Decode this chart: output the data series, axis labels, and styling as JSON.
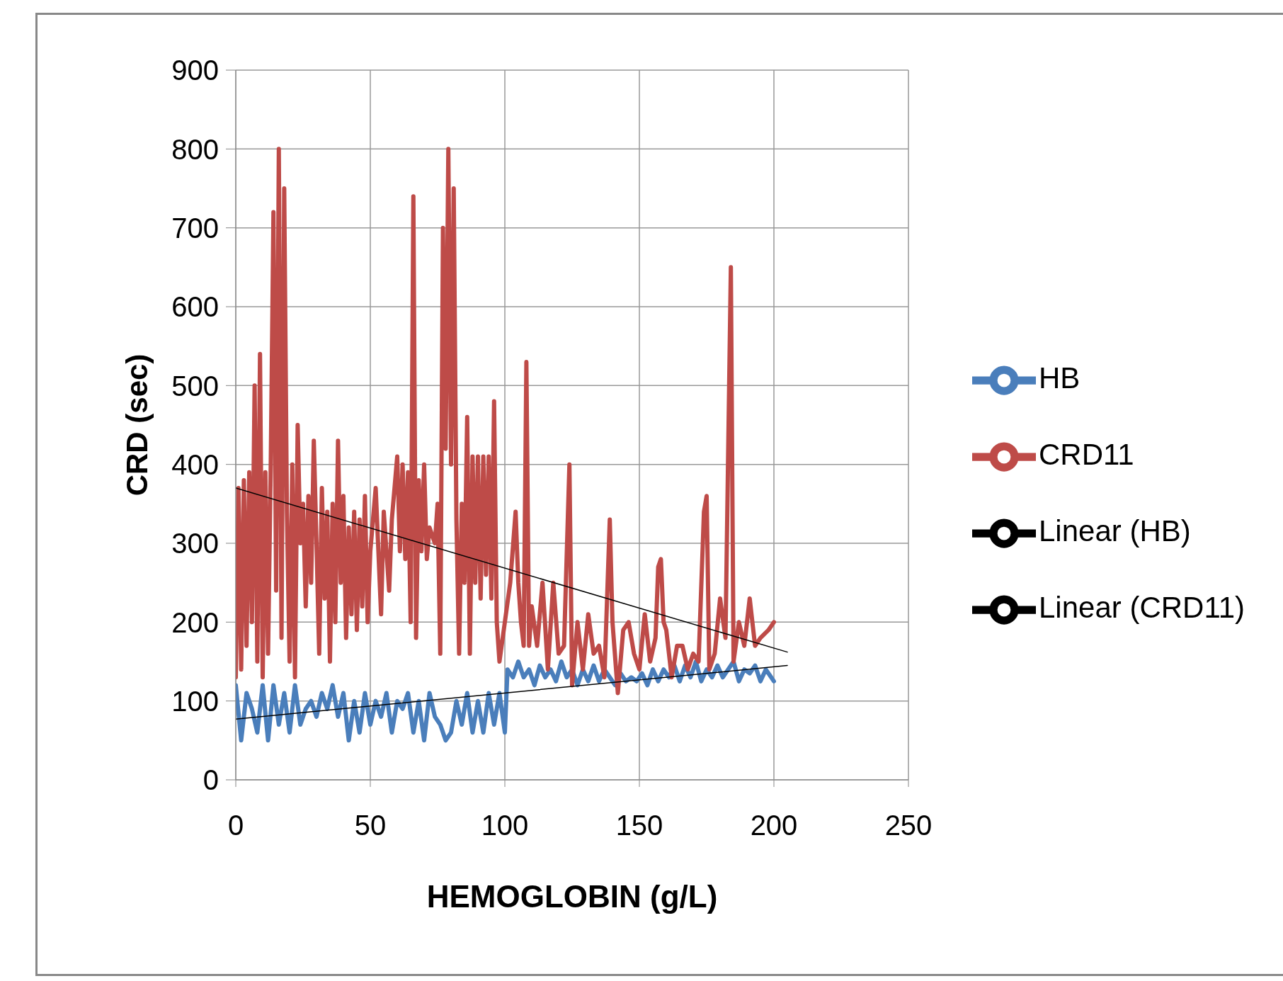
{
  "chart_data": {
    "type": "line",
    "xlabel": "HEMOGLOBIN (g/L)",
    "ylabel": "CRD   (sec)",
    "xlim": [
      0,
      250
    ],
    "xticks": [
      0,
      50,
      100,
      150,
      200,
      250
    ],
    "ylim": [
      0,
      900
    ],
    "yticks": [
      0,
      100,
      200,
      300,
      400,
      500,
      600,
      700,
      800,
      900
    ],
    "grid": true,
    "legend": "right",
    "marker": "none",
    "series": [
      {
        "name": "HB",
        "color": "#4a7ebb",
        "x": [
          0,
          2,
          4,
          6,
          8,
          10,
          12,
          14,
          16,
          18,
          20,
          22,
          24,
          26,
          28,
          30,
          32,
          34,
          36,
          38,
          40,
          42,
          44,
          46,
          48,
          50,
          52,
          54,
          56,
          58,
          60,
          62,
          64,
          66,
          68,
          70,
          72,
          74,
          76,
          78,
          80,
          82,
          84,
          86,
          88,
          90,
          92,
          94,
          96,
          98,
          100,
          101,
          103,
          105,
          107,
          109,
          111,
          113,
          115,
          117,
          119,
          121,
          123,
          125,
          127,
          129,
          131,
          133,
          135,
          137,
          139,
          141,
          143,
          145,
          147,
          149,
          151,
          153,
          155,
          157,
          159,
          161,
          163,
          165,
          167,
          169,
          171,
          173,
          175,
          177,
          179,
          181,
          183,
          185,
          187,
          189,
          191,
          193,
          195,
          197,
          199,
          200
        ],
        "values": [
          120,
          50,
          110,
          90,
          60,
          120,
          50,
          120,
          70,
          110,
          60,
          120,
          70,
          90,
          100,
          80,
          110,
          90,
          120,
          80,
          110,
          50,
          100,
          60,
          110,
          70,
          100,
          80,
          110,
          60,
          100,
          90,
          110,
          60,
          100,
          50,
          110,
          80,
          70,
          50,
          60,
          100,
          70,
          110,
          60,
          100,
          60,
          110,
          70,
          110,
          60,
          140,
          130,
          150,
          130,
          140,
          120,
          145,
          130,
          140,
          125,
          150,
          130,
          140,
          120,
          140,
          125,
          145,
          125,
          140,
          130,
          120,
          135,
          125,
          130,
          125,
          135,
          120,
          140,
          125,
          140,
          130,
          145,
          125,
          145,
          130,
          150,
          125,
          140,
          130,
          145,
          130,
          140,
          150,
          125,
          140,
          135,
          145,
          125,
          140,
          130,
          125
        ]
      },
      {
        "name": "CRD11",
        "color": "#be4b48",
        "x": [
          0,
          1,
          2,
          3,
          4,
          5,
          6,
          7,
          8,
          9,
          10,
          11,
          12,
          13,
          14,
          15,
          16,
          17,
          18,
          19,
          20,
          21,
          22,
          23,
          24,
          25,
          26,
          27,
          28,
          29,
          30,
          31,
          32,
          33,
          34,
          35,
          36,
          37,
          38,
          39,
          40,
          41,
          42,
          43,
          44,
          45,
          46,
          47,
          48,
          49,
          50,
          52,
          54,
          55,
          57,
          58,
          60,
          61,
          62,
          63,
          64,
          65,
          66,
          67,
          68,
          69,
          70,
          71,
          72,
          74,
          75,
          76,
          77,
          78,
          79,
          80,
          81,
          82,
          83,
          84,
          85,
          86,
          87,
          88,
          89,
          90,
          91,
          92,
          93,
          94,
          95,
          96,
          97,
          98,
          100,
          102,
          104,
          105,
          106,
          107,
          108,
          109,
          110,
          112,
          114,
          116,
          118,
          120,
          122,
          124,
          125,
          127,
          129,
          131,
          133,
          135,
          137,
          139,
          140,
          142,
          144,
          146,
          148,
          150,
          152,
          154,
          156,
          157,
          158,
          159,
          160,
          162,
          164,
          166,
          168,
          170,
          172,
          174,
          175,
          176,
          178,
          180,
          182,
          184,
          185,
          187,
          189,
          191,
          193,
          195,
          198,
          200
        ],
        "values": [
          130,
          370,
          140,
          380,
          170,
          390,
          200,
          500,
          150,
          540,
          130,
          390,
          160,
          400,
          720,
          240,
          800,
          180,
          750,
          340,
          150,
          400,
          130,
          450,
          300,
          350,
          220,
          360,
          250,
          430,
          300,
          160,
          370,
          230,
          340,
          150,
          350,
          200,
          430,
          250,
          360,
          180,
          320,
          210,
          340,
          190,
          330,
          220,
          360,
          200,
          290,
          370,
          210,
          340,
          240,
          330,
          410,
          290,
          400,
          280,
          390,
          200,
          740,
          180,
          380,
          290,
          400,
          280,
          320,
          300,
          350,
          160,
          700,
          420,
          800,
          400,
          750,
          330,
          160,
          350,
          250,
          460,
          160,
          410,
          250,
          410,
          230,
          410,
          260,
          410,
          230,
          480,
          200,
          150,
          200,
          250,
          340,
          250,
          200,
          170,
          530,
          170,
          220,
          170,
          250,
          140,
          250,
          160,
          170,
          400,
          120,
          200,
          140,
          210,
          160,
          170,
          130,
          330,
          200,
          110,
          190,
          200,
          160,
          140,
          210,
          150,
          180,
          270,
          280,
          200,
          190,
          130,
          170,
          170,
          140,
          160,
          150,
          340,
          360,
          140,
          160,
          230,
          180,
          650,
          150,
          200,
          170,
          230,
          170,
          180,
          190,
          200
        ]
      },
      {
        "name": "Linear (HB)",
        "color": "#000000",
        "x": [
          0,
          205
        ],
        "values": [
          77,
          145
        ]
      },
      {
        "name": "Linear (CRD11)",
        "color": "#000000",
        "x": [
          0,
          205
        ],
        "values": [
          370,
          162
        ]
      }
    ]
  }
}
